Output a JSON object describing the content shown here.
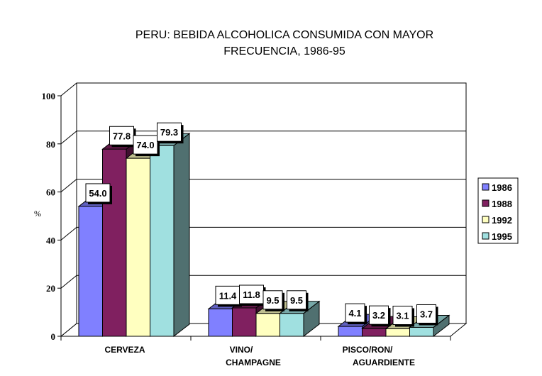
{
  "chart_data": {
    "type": "bar",
    "variant": "3d-clustered-column",
    "title_lines": [
      "PERU: BEBIDA ALCOHOLICA CONSUMIDA CON MAYOR",
      "FRECUENCIA, 1986-95"
    ],
    "xlabel": "",
    "ylabel": "%",
    "ylim": [
      0,
      100
    ],
    "yticks": [
      0,
      20,
      40,
      60,
      80,
      100
    ],
    "ytick_labels": [
      "0",
      "20",
      "40",
      "60",
      "80",
      "100"
    ],
    "grid": true,
    "categories": [
      {
        "lines": [
          "CERVEZA"
        ]
      },
      {
        "lines": [
          "VINO/",
          "CHAMPAGNE"
        ]
      },
      {
        "lines": [
          "PISCO/RON/",
          "AGUARDIENTE"
        ]
      }
    ],
    "series": [
      {
        "name": "1986",
        "color": "#8080ff",
        "values": [
          54.0,
          11.4,
          4.1
        ],
        "labels": [
          "54.0",
          "11.4",
          "4.1"
        ]
      },
      {
        "name": "1988",
        "color": "#802060",
        "values": [
          77.8,
          11.8,
          3.2
        ],
        "labels": [
          "77.8",
          "11.8",
          "3.2"
        ]
      },
      {
        "name": "1992",
        "color": "#ffffc0",
        "values": [
          74.0,
          9.5,
          3.1
        ],
        "labels": [
          "74.0",
          "9.5",
          "3.1"
        ]
      },
      {
        "name": "1995",
        "color": "#a0e0e0",
        "values": [
          79.3,
          9.5,
          3.7
        ],
        "labels": [
          "79.3",
          "9.5",
          "3.7"
        ]
      }
    ],
    "legend_position": "right"
  }
}
